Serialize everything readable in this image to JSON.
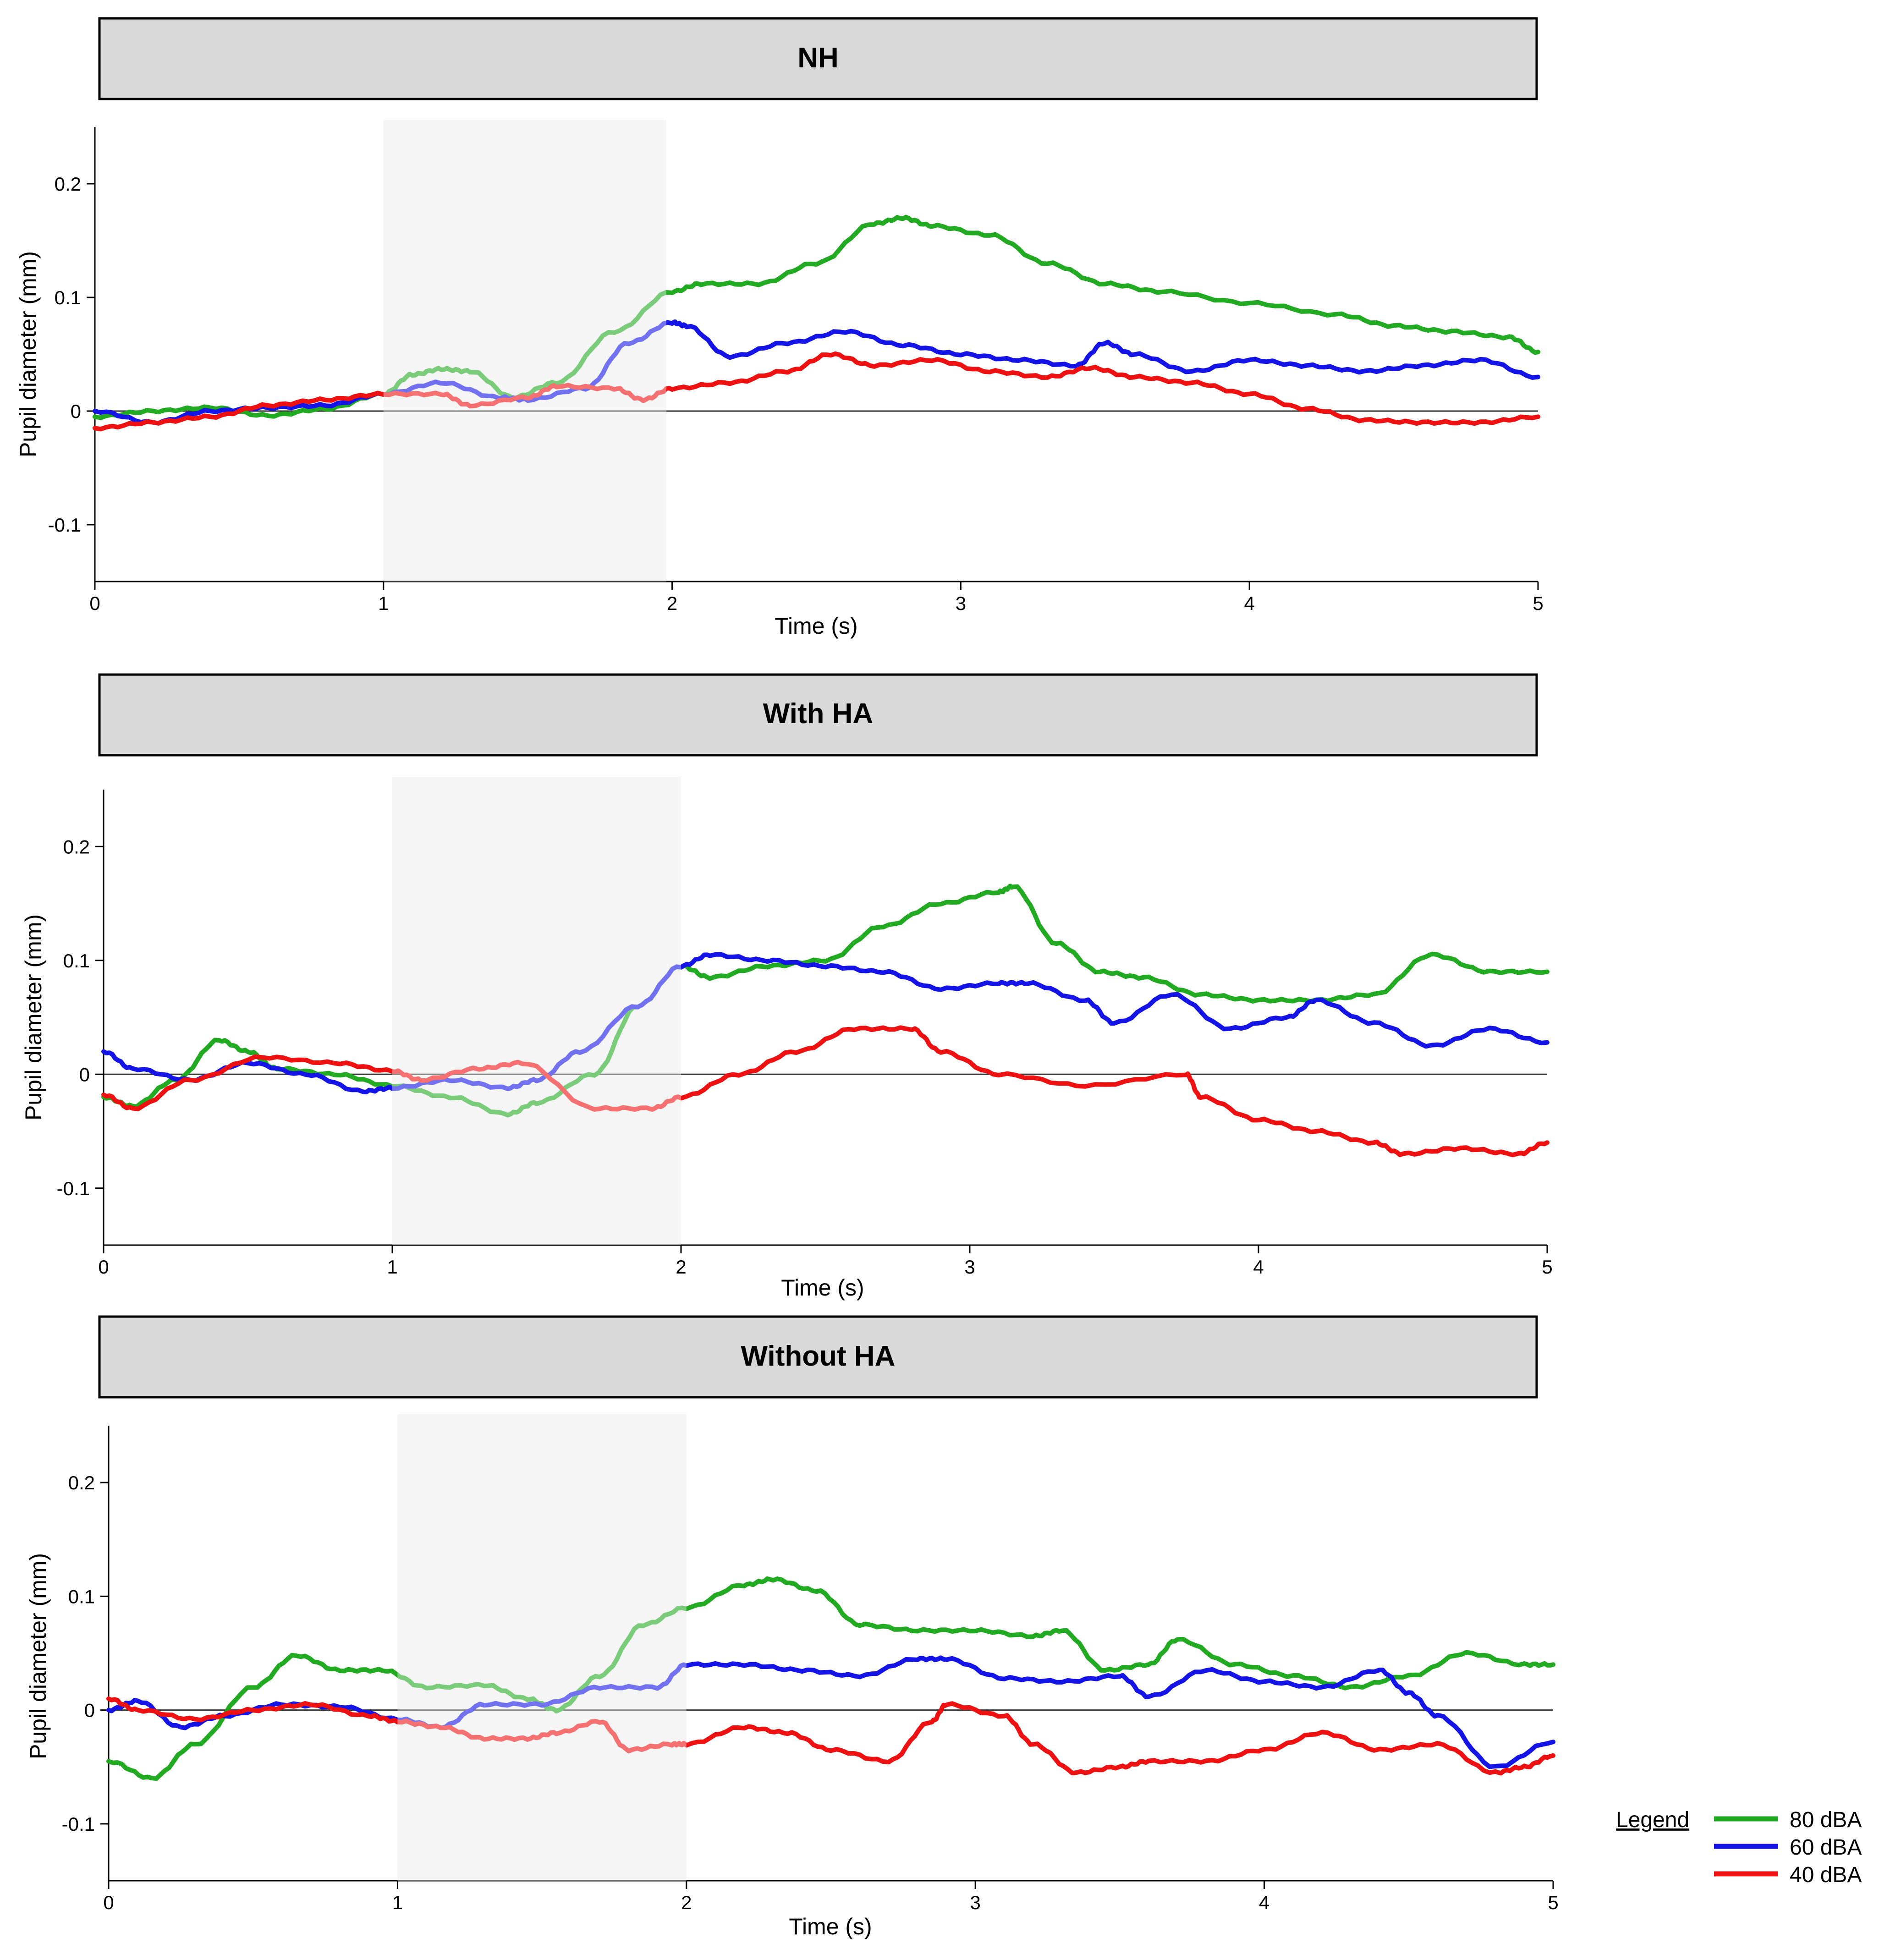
{
  "chart_data": [
    {
      "type": "line",
      "title": "NH",
      "xlabel": "Time (s)",
      "ylabel": "Pupil diameter (mm)",
      "xlim": [
        0,
        5
      ],
      "ylim": [
        -0.15,
        0.25
      ],
      "xticks": [
        0,
        1,
        2,
        3,
        4,
        5
      ],
      "yticks": [
        -0.1,
        0,
        0.1,
        0.2
      ],
      "ytick_labels": [
        "-0.1",
        "0",
        "0.1",
        "0.2"
      ],
      "shaded_region": [
        1.0,
        1.98
      ],
      "series": [
        {
          "name": "80 dBA",
          "x": [
            0,
            0.2,
            0.4,
            0.6,
            0.8,
            1.0,
            1.1,
            1.2,
            1.3,
            1.45,
            1.6,
            1.8,
            2.0,
            2.1,
            2.3,
            2.5,
            2.7,
            2.8,
            2.9,
            3.1,
            3.3,
            3.5,
            3.7,
            4.0,
            4.3,
            4.5,
            4.7,
            4.9,
            5.0
          ],
          "values": [
            -0.005,
            0.0,
            0.003,
            -0.004,
            0.002,
            0.015,
            0.032,
            0.037,
            0.035,
            0.012,
            0.025,
            0.07,
            0.105,
            0.112,
            0.112,
            0.13,
            0.165,
            0.17,
            0.163,
            0.155,
            0.13,
            0.112,
            0.105,
            0.095,
            0.085,
            0.075,
            0.07,
            0.065,
            0.052
          ]
        },
        {
          "name": "60 dBA",
          "x": [
            0,
            0.2,
            0.4,
            0.6,
            0.8,
            1.0,
            1.2,
            1.4,
            1.5,
            1.7,
            1.85,
            2.0,
            2.05,
            2.2,
            2.4,
            2.6,
            2.8,
            3.0,
            3.2,
            3.4,
            3.5,
            3.6,
            3.8,
            4.0,
            4.2,
            4.4,
            4.6,
            4.8,
            5.0
          ],
          "values": [
            0.0,
            -0.01,
            0.0,
            0.003,
            0.005,
            0.015,
            0.025,
            0.012,
            0.01,
            0.02,
            0.06,
            0.078,
            0.075,
            0.048,
            0.06,
            0.07,
            0.058,
            0.05,
            0.045,
            0.04,
            0.06,
            0.05,
            0.035,
            0.045,
            0.04,
            0.035,
            0.04,
            0.045,
            0.03
          ]
        },
        {
          "name": "40 dBA",
          "x": [
            0,
            0.2,
            0.4,
            0.6,
            0.8,
            1.0,
            1.2,
            1.3,
            1.5,
            1.6,
            1.8,
            1.9,
            2.0,
            2.2,
            2.4,
            2.55,
            2.7,
            2.9,
            3.1,
            3.3,
            3.45,
            3.6,
            3.8,
            4.0,
            4.2,
            4.4,
            4.6,
            4.8,
            5.0
          ],
          "values": [
            -0.015,
            -0.01,
            -0.005,
            0.005,
            0.01,
            0.015,
            0.015,
            0.005,
            0.012,
            0.022,
            0.02,
            0.01,
            0.02,
            0.025,
            0.035,
            0.05,
            0.04,
            0.045,
            0.035,
            0.03,
            0.038,
            0.03,
            0.025,
            0.015,
            0.002,
            -0.008,
            -0.01,
            -0.01,
            -0.005
          ]
        }
      ]
    },
    {
      "type": "line",
      "title": "With HA",
      "xlabel": "Time (s)",
      "ylabel": "Pupil diameter (mm)",
      "xlim": [
        0,
        5
      ],
      "ylim": [
        -0.15,
        0.25
      ],
      "xticks": [
        0,
        1,
        2,
        3,
        4,
        5
      ],
      "yticks": [
        -0.1,
        0,
        0.1,
        0.2
      ],
      "ytick_labels": [
        "-0.1",
        "0",
        "0.1",
        "0.2"
      ],
      "shaded_region": [
        1.0,
        2.0
      ],
      "series": [
        {
          "name": "80 dBA",
          "x": [
            0,
            0.1,
            0.25,
            0.4,
            0.5,
            0.6,
            0.8,
            1.0,
            1.2,
            1.4,
            1.5,
            1.7,
            1.85,
            2.0,
            2.1,
            2.3,
            2.5,
            2.7,
            2.9,
            3.1,
            3.15,
            3.3,
            3.45,
            3.6,
            3.8,
            4.0,
            4.2,
            4.4,
            4.6,
            4.8,
            5.0
          ],
          "values": [
            -0.02,
            -0.028,
            -0.005,
            0.03,
            0.02,
            0.005,
            0.0,
            -0.01,
            -0.02,
            -0.035,
            -0.025,
            0.0,
            0.06,
            0.095,
            0.085,
            0.095,
            0.1,
            0.13,
            0.15,
            0.16,
            0.165,
            0.115,
            0.09,
            0.085,
            0.07,
            0.065,
            0.065,
            0.07,
            0.105,
            0.09,
            0.09
          ]
        },
        {
          "name": "60 dBA",
          "x": [
            0,
            0.1,
            0.3,
            0.5,
            0.7,
            0.9,
            1.0,
            1.2,
            1.4,
            1.5,
            1.65,
            1.85,
            2.0,
            2.1,
            2.3,
            2.5,
            2.7,
            2.9,
            3.1,
            3.2,
            3.4,
            3.5,
            3.7,
            3.9,
            4.1,
            4.2,
            4.4,
            4.6,
            4.8,
            5.0
          ],
          "values": [
            0.02,
            0.005,
            -0.005,
            0.01,
            0.0,
            -0.015,
            -0.012,
            -0.005,
            -0.012,
            -0.005,
            0.02,
            0.06,
            0.095,
            0.105,
            0.1,
            0.095,
            0.09,
            0.075,
            0.08,
            0.08,
            0.065,
            0.045,
            0.07,
            0.04,
            0.05,
            0.065,
            0.045,
            0.025,
            0.04,
            0.028
          ]
        },
        {
          "name": "40 dBA",
          "x": [
            0,
            0.1,
            0.3,
            0.55,
            0.8,
            1.0,
            1.1,
            1.3,
            1.45,
            1.7,
            1.9,
            2.0,
            2.2,
            2.4,
            2.6,
            2.8,
            2.9,
            3.1,
            3.4,
            3.75,
            3.8,
            4.0,
            4.2,
            4.4,
            4.5,
            4.7,
            4.9,
            5.0
          ],
          "values": [
            -0.018,
            -0.03,
            -0.005,
            0.015,
            0.01,
            0.003,
            -0.005,
            0.005,
            0.01,
            -0.03,
            -0.03,
            -0.02,
            0.0,
            0.02,
            0.04,
            0.04,
            0.02,
            0.0,
            -0.01,
            0.0,
            -0.02,
            -0.04,
            -0.05,
            -0.06,
            -0.07,
            -0.065,
            -0.07,
            -0.06
          ]
        }
      ]
    },
    {
      "type": "line",
      "title": "Without HA",
      "xlabel": "Time (s)",
      "ylabel": "Pupil diameter (mm)",
      "xlim": [
        0,
        5
      ],
      "ylim": [
        -0.15,
        0.25
      ],
      "xticks": [
        0,
        1,
        2,
        3,
        4,
        5
      ],
      "yticks": [
        -0.1,
        0,
        0.1,
        0.2
      ],
      "ytick_labels": [
        "-0.1",
        "0",
        "0.1",
        "0.2"
      ],
      "shaded_region": [
        1.0,
        2.0
      ],
      "series": [
        {
          "name": "80 dBA",
          "x": [
            0,
            0.15,
            0.3,
            0.5,
            0.65,
            0.8,
            0.95,
            1.1,
            1.3,
            1.45,
            1.55,
            1.7,
            1.85,
            2.0,
            2.2,
            2.3,
            2.45,
            2.6,
            2.8,
            3.0,
            3.2,
            3.3,
            3.45,
            3.6,
            3.7,
            3.9,
            4.1,
            4.3,
            4.5,
            4.7,
            4.9,
            5.0
          ],
          "values": [
            -0.045,
            -0.06,
            -0.03,
            0.02,
            0.048,
            0.035,
            0.035,
            0.02,
            0.022,
            0.01,
            0.0,
            0.03,
            0.075,
            0.09,
            0.11,
            0.115,
            0.105,
            0.075,
            0.07,
            0.07,
            0.065,
            0.07,
            0.035,
            0.04,
            0.062,
            0.04,
            0.03,
            0.02,
            0.03,
            0.05,
            0.04,
            0.04
          ]
        },
        {
          "name": "60 dBA",
          "x": [
            0,
            0.1,
            0.25,
            0.4,
            0.6,
            0.8,
            1.0,
            1.15,
            1.3,
            1.5,
            1.7,
            1.9,
            2.0,
            2.2,
            2.4,
            2.6,
            2.8,
            2.9,
            3.1,
            3.3,
            3.5,
            3.6,
            3.8,
            4.0,
            4.2,
            4.4,
            4.5,
            4.6,
            4.8,
            5.0
          ],
          "values": [
            0.0,
            0.008,
            -0.015,
            -0.005,
            0.005,
            0.003,
            -0.008,
            -0.015,
            0.005,
            0.005,
            0.02,
            0.02,
            0.04,
            0.04,
            0.035,
            0.03,
            0.045,
            0.045,
            0.028,
            0.025,
            0.03,
            0.012,
            0.035,
            0.025,
            0.02,
            0.035,
            0.015,
            -0.005,
            -0.05,
            -0.028
          ]
        },
        {
          "name": "40 dBA",
          "x": [
            0,
            0.1,
            0.3,
            0.5,
            0.7,
            0.9,
            1.0,
            1.15,
            1.3,
            1.45,
            1.55,
            1.7,
            1.8,
            1.95,
            2.0,
            2.2,
            2.35,
            2.5,
            2.7,
            2.85,
            2.9,
            3.1,
            3.2,
            3.35,
            3.5,
            3.6,
            3.8,
            4.0,
            4.2,
            4.4,
            4.6,
            4.8,
            4.9,
            5.0
          ],
          "values": [
            0.01,
            0.0,
            -0.008,
            0.0,
            0.005,
            -0.005,
            -0.01,
            -0.015,
            -0.025,
            -0.025,
            -0.02,
            -0.01,
            -0.035,
            -0.03,
            -0.03,
            -0.015,
            -0.02,
            -0.035,
            -0.045,
            -0.01,
            0.005,
            -0.005,
            -0.03,
            -0.055,
            -0.05,
            -0.045,
            -0.045,
            -0.035,
            -0.02,
            -0.035,
            -0.03,
            -0.055,
            -0.05,
            -0.04
          ]
        }
      ]
    }
  ],
  "legend": {
    "title": "Legend",
    "entries": [
      {
        "label": "80 dBA",
        "color": "#22aa22"
      },
      {
        "label": "60 dBA",
        "color": "#1414e6"
      },
      {
        "label": "40 dBA",
        "color": "#ee1111"
      }
    ]
  }
}
